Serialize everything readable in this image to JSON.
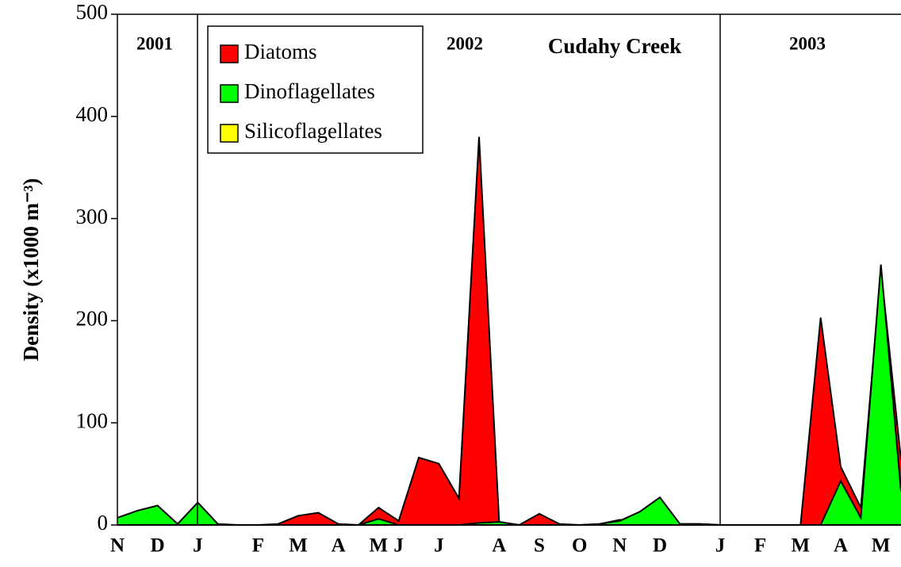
{
  "chart_data": {
    "type": "area",
    "title": "Cudahy Creek",
    "annotations": [
      "2001",
      "2002",
      "2003"
    ],
    "y_label": "Density (x1000 m⁻³)",
    "categories": [
      "N",
      null,
      "D",
      null,
      "J",
      null,
      null,
      "F",
      null,
      "M",
      null,
      "A",
      null,
      "M",
      "J",
      null,
      "J",
      null,
      null,
      "A",
      null,
      "S",
      null,
      "O",
      null,
      "N",
      null,
      "D",
      null,
      null,
      "J",
      null,
      "F",
      null,
      "M",
      null,
      "A",
      null,
      "M",
      null
    ],
    "series": [
      {
        "name": "Diatoms",
        "color": "#ff0000",
        "values": [
          5,
          10,
          15,
          0,
          10,
          0,
          0,
          0,
          1,
          9,
          12,
          1,
          0,
          17,
          4,
          66,
          60,
          26,
          380,
          3,
          0,
          11,
          1,
          0,
          1,
          5,
          3,
          5,
          1,
          1,
          0,
          0,
          0,
          0,
          0,
          203,
          57,
          17,
          250,
          64
        ]
      },
      {
        "name": "Dinoflagellates",
        "color": "#00ff00",
        "values": [
          7,
          14,
          19,
          1,
          22,
          1,
          0,
          0,
          0,
          0,
          0,
          0,
          0,
          6,
          0,
          0,
          0,
          0,
          2,
          3,
          0,
          0,
          0,
          0,
          1,
          4,
          13,
          27,
          1,
          1,
          0,
          0,
          0,
          0,
          0,
          0,
          43,
          7,
          255,
          33
        ]
      },
      {
        "name": "Silicoflagellates",
        "color": "#ffff00",
        "values": [
          0,
          0,
          0,
          0,
          0,
          0,
          0,
          0,
          0,
          0,
          0,
          0,
          0,
          0,
          0,
          0,
          0,
          0,
          0,
          0,
          0,
          0,
          0,
          0,
          0,
          0,
          0,
          0,
          0,
          0,
          0,
          0,
          0,
          0,
          0,
          0,
          0,
          0,
          0,
          0
        ]
      }
    ],
    "ylim": [
      0,
      500
    ],
    "yticks": [
      0,
      100,
      200,
      300,
      400,
      500
    ],
    "grid": false
  }
}
